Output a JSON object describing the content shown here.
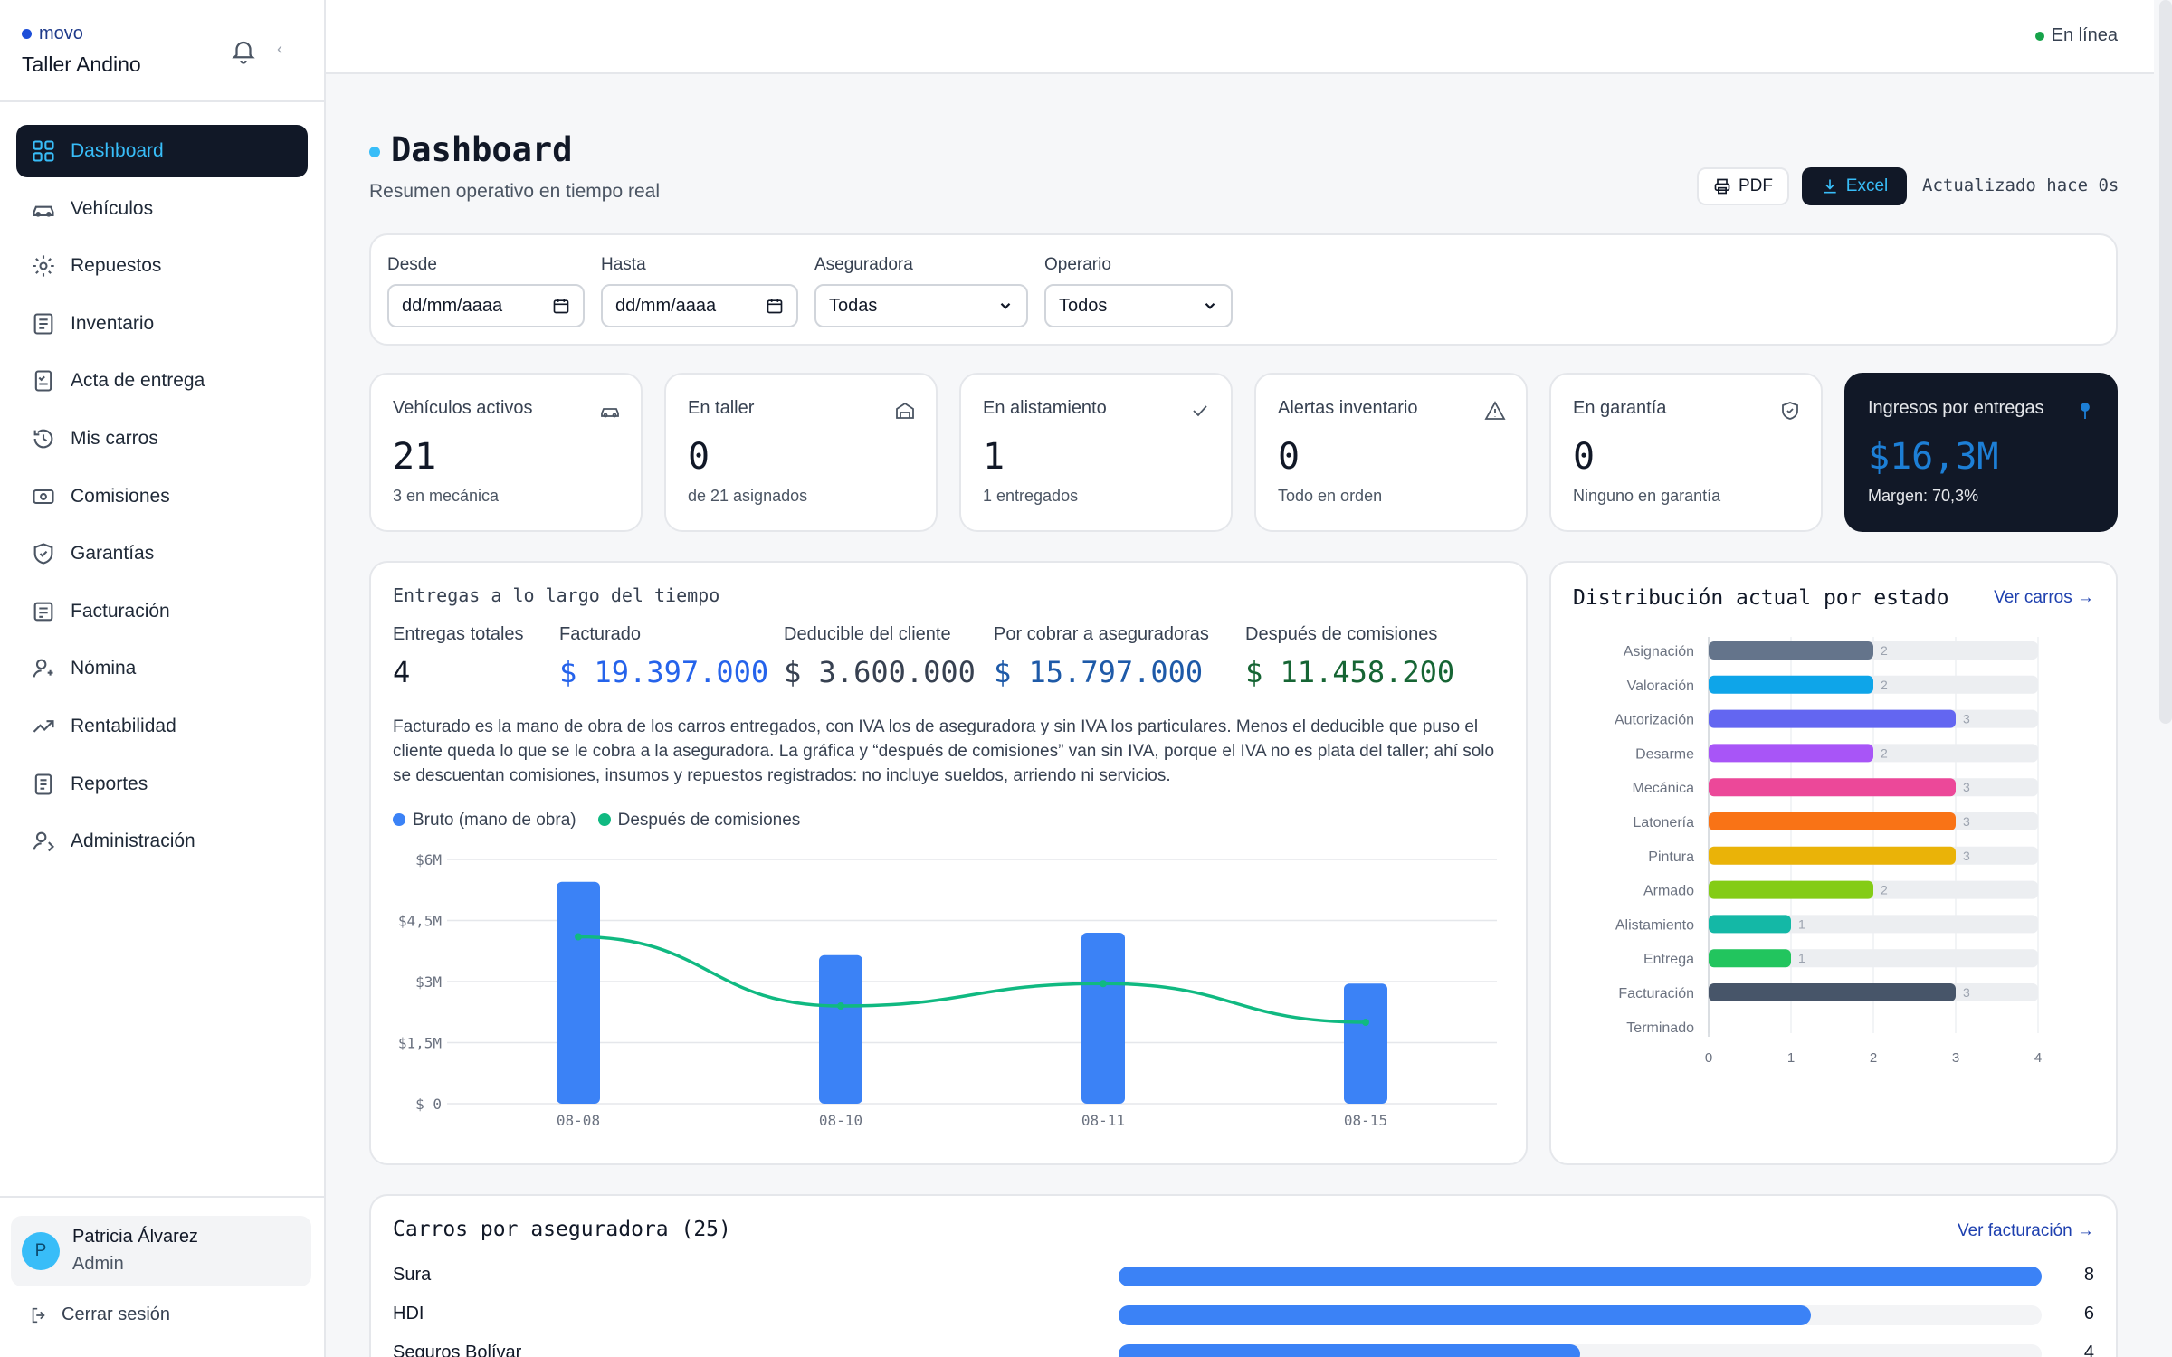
{
  "sidebar": {
    "brand": "movo",
    "org": "Taller Andino",
    "items": [
      {
        "label": "Dashboard",
        "icon": "grid-icon"
      },
      {
        "label": "Vehículos",
        "icon": "car-icon"
      },
      {
        "label": "Repuestos",
        "icon": "cog-icon"
      },
      {
        "label": "Inventario",
        "icon": "list-icon"
      },
      {
        "label": "Acta de entrega",
        "icon": "checklist-icon"
      },
      {
        "label": "Mis carros",
        "icon": "history-icon"
      },
      {
        "label": "Comisiones",
        "icon": "cash-icon"
      },
      {
        "label": "Garantías",
        "icon": "shield-icon"
      },
      {
        "label": "Facturación",
        "icon": "invoice-icon"
      },
      {
        "label": "Nómina",
        "icon": "user-icon"
      },
      {
        "label": "Rentabilidad",
        "icon": "trend-icon"
      },
      {
        "label": "Reportes",
        "icon": "report-icon"
      },
      {
        "label": "Administración",
        "icon": "admin-icon"
      }
    ],
    "user": {
      "initial": "P",
      "name": "Patricia Álvarez",
      "role": "Admin"
    },
    "logout": "Cerrar sesión"
  },
  "topbar": {
    "status": "En línea"
  },
  "header": {
    "title": "Dashboard",
    "subtitle": "Resumen operativo en tiempo real",
    "pdf": "PDF",
    "excel": "Excel",
    "updated": "Actualizado hace 0s"
  },
  "filters": {
    "from_label": "Desde",
    "from_value": "dd/mm/aaaa",
    "to_label": "Hasta",
    "to_value": "dd/mm/aaaa",
    "insurer_label": "Aseguradora",
    "insurer_value": "Todas",
    "operator_label": "Operario",
    "operator_value": "Todos"
  },
  "kpis": [
    {
      "label": "Vehículos activos",
      "value": "21",
      "sub": "3 en mecánica",
      "icon": "car-icon"
    },
    {
      "label": "En taller",
      "value": "0",
      "sub": "de 21 asignados",
      "icon": "garage-icon"
    },
    {
      "label": "En alistamiento",
      "value": "1",
      "sub": "1 entregados",
      "icon": "check-icon"
    },
    {
      "label": "Alertas inventario",
      "value": "0",
      "sub": "Todo en orden",
      "icon": "warning-icon"
    },
    {
      "label": "En garantía",
      "value": "0",
      "sub": "Ninguno en garantía",
      "icon": "shield-icon"
    },
    {
      "label": "Ingresos por entregas",
      "value": "$16,3M",
      "sub": "Margen: 70,3%",
      "icon": "pin-icon"
    }
  ],
  "deliveries": {
    "title": "Entregas a lo largo del tiempo",
    "stats": [
      {
        "label": "Entregas totales",
        "value": "4",
        "color": "#111827"
      },
      {
        "label": "Facturado",
        "value": "$ 19.397.000",
        "color": "#2563eb"
      },
      {
        "label": "Deducible del cliente",
        "value": "$ 3.600.000",
        "color": "#374151"
      },
      {
        "label": "Por cobrar a aseguradoras",
        "value": "$ 15.797.000",
        "color": "#1e5aa8"
      },
      {
        "label": "Después de comisiones",
        "value": "$ 11.458.200",
        "color": "#166534"
      }
    ],
    "description": "Facturado es la mano de obra de los carros entregados, con IVA los de aseguradora y sin IVA los particulares. Menos el deducible que puso el cliente queda lo que se le cobra a la aseguradora. La gráfica y “después de comisiones” van sin IVA, porque el IVA no es plata del taller; ahí solo se descuentan comisiones, insumos y repuestos registrados: no incluye sueldos, arriendo ni servicios.",
    "legend": [
      {
        "label": "Bruto (mano de obra)",
        "color": "#3b82f6"
      },
      {
        "label": "Después de comisiones",
        "color": "#10b981"
      }
    ]
  },
  "chart_data": [
    {
      "type": "bar",
      "categories": [
        "08-08",
        "08-10",
        "08-11",
        "08-15"
      ],
      "series": [
        {
          "name": "Bruto (mano de obra)",
          "type": "bar",
          "color": "#3b82f6",
          "values": [
            5.45,
            3.65,
            4.2,
            2.95
          ]
        },
        {
          "name": "Después de comisiones",
          "type": "line",
          "color": "#10b981",
          "values": [
            4.1,
            2.4,
            2.95,
            2.0
          ]
        }
      ],
      "yticks": [
        "$ 0",
        "$1,5M",
        "$3M",
        "$4,5M",
        "$6M"
      ],
      "ylim": [
        0,
        6
      ],
      "grid": true
    },
    {
      "type": "bar",
      "orientation": "horizontal",
      "title": "Distribución actual por estado",
      "categories": [
        "Asignación",
        "Valoración",
        "Autorización",
        "Desarme",
        "Mecánica",
        "Latonería",
        "Pintura",
        "Armado",
        "Alistamiento",
        "Entrega",
        "Facturación",
        "Terminado"
      ],
      "values": [
        2,
        2,
        3,
        2,
        3,
        3,
        3,
        2,
        1,
        1,
        3,
        0
      ],
      "colors": [
        "#64748b",
        "#0ea5e9",
        "#6366f1",
        "#a855f7",
        "#ec4899",
        "#f97316",
        "#eab308",
        "#84cc16",
        "#14b8a6",
        "#22c55e",
        "#475569",
        "#94a3b8"
      ],
      "xticks": [
        "0",
        "1",
        "2",
        "3",
        "4"
      ],
      "xlim": [
        0,
        4
      ]
    }
  ],
  "status": {
    "title": "Distribución actual por estado",
    "link": "Ver carros →"
  },
  "insurers": {
    "title": "Carros por aseguradora (25)",
    "link": "Ver facturación →",
    "max": 8,
    "rows": [
      {
        "name": "Sura",
        "count": 8
      },
      {
        "name": "HDI",
        "count": 6
      },
      {
        "name": "Seguros Bolívar",
        "count": 4
      }
    ]
  }
}
